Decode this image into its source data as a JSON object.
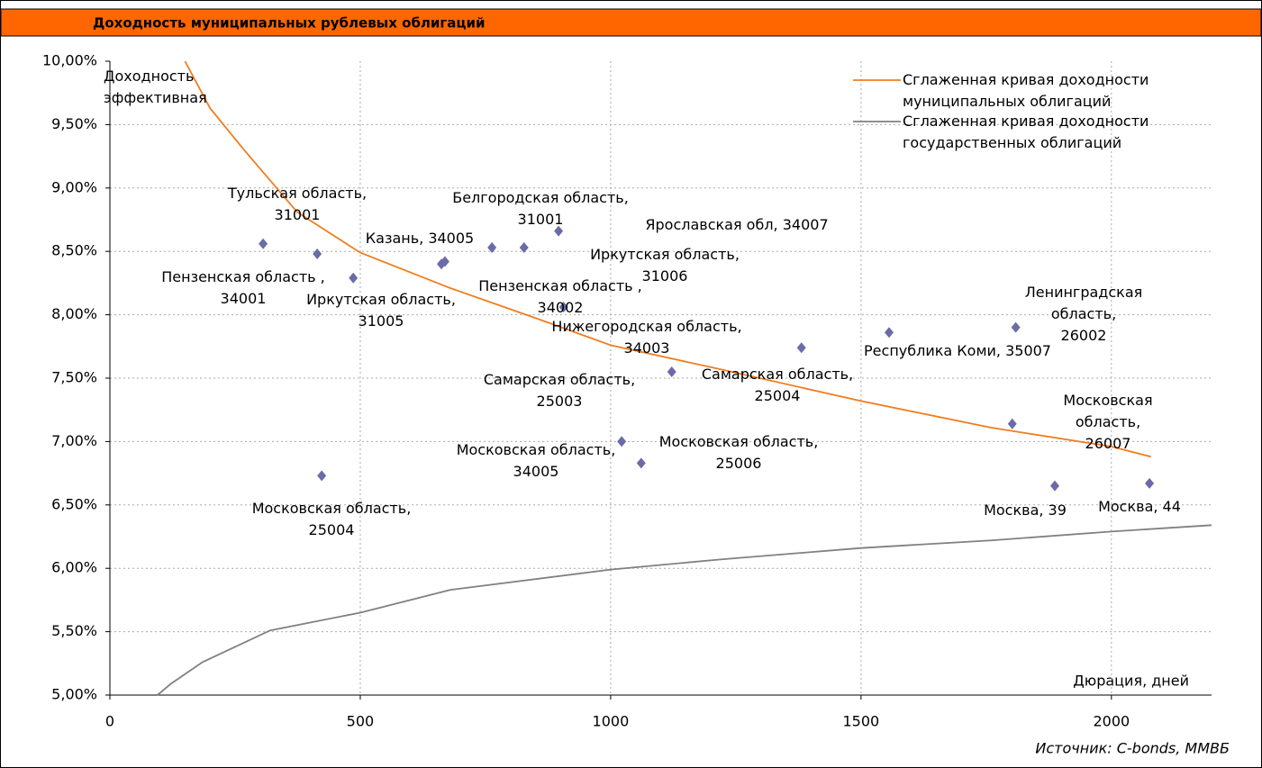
{
  "chart_data": {
    "type": "scatter",
    "title": "Доходность муниципальных рублевых облигаций",
    "y_label": "Доходность\nэффективная",
    "x_label": "Дюрация, дней",
    "source": "Источник: C-bonds, ММВБ",
    "xlim": [
      0,
      2200
    ],
    "ylim": [
      5,
      10
    ],
    "xticks": [
      0,
      500,
      1000,
      1500,
      2000
    ],
    "yticks": [
      {
        "value": 5,
        "label": "5,00%"
      },
      {
        "value": 5.5,
        "label": "5,50%"
      },
      {
        "value": 6,
        "label": "6,00%"
      },
      {
        "value": 6.5,
        "label": "6,50%"
      },
      {
        "value": 7,
        "label": "7,00%"
      },
      {
        "value": 7.5,
        "label": "7,50%"
      },
      {
        "value": 8,
        "label": "8,00%"
      },
      {
        "value": 8.5,
        "label": "8,50%"
      },
      {
        "value": 9,
        "label": "9,00%"
      },
      {
        "value": 9.5,
        "label": "9,50%"
      },
      {
        "value": 10,
        "label": "10,00%"
      }
    ],
    "grid": true,
    "points": {
      "color": "#6b6ba8",
      "x": [
        306,
        414,
        486,
        662,
        669,
        763,
        827,
        896,
        906,
        1122,
        1381,
        1556,
        1809,
        1802,
        1887,
        2076,
        1022,
        1061,
        423
      ],
      "y": [
        8.56,
        8.48,
        8.29,
        8.4,
        8.42,
        8.53,
        8.53,
        8.66,
        8.06,
        7.55,
        7.74,
        7.86,
        7.9,
        7.14,
        6.65,
        6.67,
        7.0,
        6.83,
        6.73
      ],
      "labels": [
        "Тульская область,\n31001",
        "Пензенская область ,\n34001",
        "Иркутская область,\n31005",
        "Казань, 34005",
        "Пензенская область ,\n34002",
        "Белгородская область,\n31001",
        "Иркутская область,\n31006",
        "Ярославская обл, 34007",
        "Нижегородская область,\n34003",
        "Самарская область,\n25003",
        "Самарская область,\n25004",
        "Республика Коми, 35007",
        "Ленинградская область,\n26002",
        "Московская область,\n26007",
        "Москва, 39",
        "Москва, 44",
        "Московская область,\n25006",
        "Московская область,\n34005",
        "Московская область,\n25004"
      ]
    },
    "series": [
      {
        "name": "Сглаженная кривая доходности\nмуниципальных облигаций",
        "color": "#f07d1e",
        "x": [
          150,
          200,
          266,
          374,
          500,
          680,
          860,
          1000,
          1219,
          1500,
          1759,
          2000,
          2079
        ],
        "values": [
          10.0,
          9.63,
          9.31,
          8.81,
          8.49,
          8.21,
          7.96,
          7.76,
          7.57,
          7.32,
          7.11,
          6.96,
          6.88
        ]
      },
      {
        "name": "Сглаженная кривая доходности\nгосударственных облигаций",
        "color": "#808080",
        "x": [
          95,
          122,
          185,
          320,
          500,
          680,
          1000,
          1219,
          1500,
          1759,
          2000,
          2200
        ],
        "values": [
          5.0,
          5.09,
          5.26,
          5.51,
          5.65,
          5.83,
          5.99,
          6.07,
          6.16,
          6.22,
          6.29,
          6.34
        ]
      }
    ]
  }
}
